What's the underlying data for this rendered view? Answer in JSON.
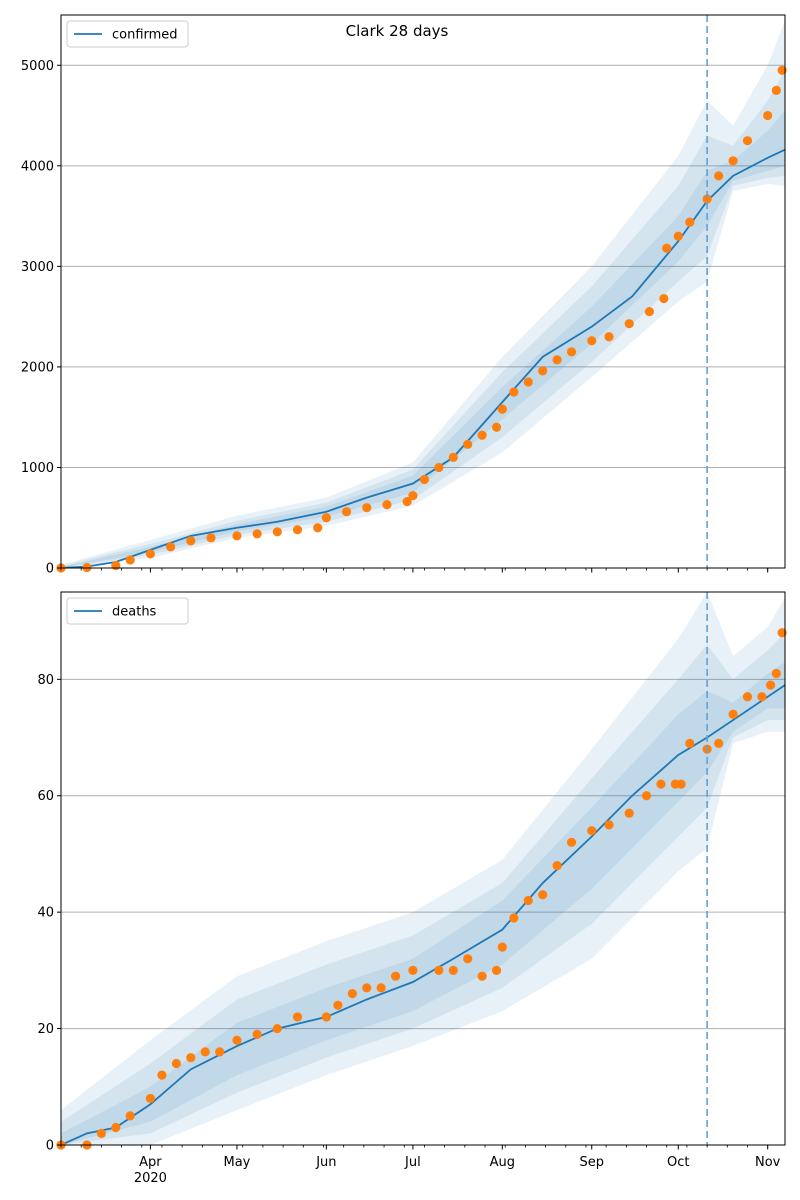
{
  "figure_title": "Clark 28 days",
  "colors": {
    "model_line": "#1f77b4",
    "observed_points": "#ff7f0e",
    "band": "#1f77b4",
    "grid": "#b0b0b0",
    "cutoff_line": "#5fa2d6"
  },
  "chart_data": [
    {
      "name": "confirmed",
      "type": "line",
      "title": "Clark 28 days",
      "legend": {
        "entries": [
          "confirmed"
        ],
        "placement": "top-left"
      },
      "x_type": "date",
      "xlim": [
        "2020-03-01",
        "2020-11-07"
      ],
      "ylim": [
        0,
        5500
      ],
      "yticks": [
        0,
        1000,
        2000,
        3000,
        4000,
        5000
      ],
      "ytick_labels": [
        "0",
        "1000",
        "2000",
        "3000",
        "4000",
        "5000"
      ],
      "grid": "horizontal",
      "cutoff_date": "2020-10-11",
      "model": {
        "name": "confirmed",
        "x": [
          "2020-03-01",
          "2020-03-10",
          "2020-03-20",
          "2020-04-01",
          "2020-04-15",
          "2020-05-01",
          "2020-05-15",
          "2020-06-01",
          "2020-06-15",
          "2020-07-01",
          "2020-07-15",
          "2020-08-01",
          "2020-08-15",
          "2020-09-01",
          "2020-09-15",
          "2020-10-01",
          "2020-10-11",
          "2020-10-20",
          "2020-11-01",
          "2020-11-07"
        ],
        "y": [
          0,
          15,
          60,
          180,
          320,
          400,
          460,
          560,
          700,
          840,
          1100,
          1650,
          2100,
          2400,
          2700,
          3250,
          3650,
          3900,
          4080,
          4160
        ]
      },
      "bands": [
        {
          "x": [
            "2020-03-01",
            "2020-04-01",
            "2020-05-01",
            "2020-06-01",
            "2020-07-01",
            "2020-08-01",
            "2020-09-01",
            "2020-10-01",
            "2020-10-11",
            "2020-10-20",
            "2020-11-01",
            "2020-11-07"
          ],
          "lower": [
            0,
            100,
            300,
            420,
            620,
            1150,
            1900,
            2650,
            2850,
            3750,
            3820,
            3800
          ],
          "upper": [
            30,
            280,
            520,
            700,
            1050,
            2100,
            3000,
            4100,
            4650,
            4400,
            5000,
            5450
          ]
        },
        {
          "x": [
            "2020-03-01",
            "2020-04-01",
            "2020-05-01",
            "2020-06-01",
            "2020-07-01",
            "2020-08-01",
            "2020-09-01",
            "2020-10-01",
            "2020-10-11",
            "2020-10-20",
            "2020-11-01",
            "2020-11-07"
          ],
          "lower": [
            0,
            130,
            330,
            460,
            680,
            1300,
            2050,
            2850,
            3100,
            3800,
            3880,
            3900
          ],
          "upper": [
            20,
            240,
            470,
            650,
            980,
            1950,
            2800,
            3800,
            4300,
            4200,
            4650,
            4950
          ]
        },
        {
          "x": [
            "2020-03-01",
            "2020-04-01",
            "2020-05-01",
            "2020-06-01",
            "2020-07-01",
            "2020-08-01",
            "2020-09-01",
            "2020-10-01",
            "2020-10-11",
            "2020-10-20",
            "2020-11-01",
            "2020-11-07"
          ],
          "lower": [
            0,
            155,
            365,
            510,
            750,
            1480,
            2230,
            3050,
            3400,
            3850,
            3950,
            4000
          ],
          "upper": [
            10,
            210,
            435,
            610,
            920,
            1800,
            2600,
            3500,
            3950,
            4050,
            4350,
            4550
          ]
        }
      ],
      "observed": {
        "name": "observed",
        "x": [
          "2020-03-01",
          "2020-03-10",
          "2020-03-20",
          "2020-03-25",
          "2020-04-01",
          "2020-04-08",
          "2020-04-15",
          "2020-04-22",
          "2020-05-01",
          "2020-05-08",
          "2020-05-15",
          "2020-05-22",
          "2020-05-29",
          "2020-06-01",
          "2020-06-08",
          "2020-06-15",
          "2020-06-22",
          "2020-06-29",
          "2020-07-01",
          "2020-07-05",
          "2020-07-10",
          "2020-07-15",
          "2020-07-20",
          "2020-07-25",
          "2020-07-30",
          "2020-08-01",
          "2020-08-05",
          "2020-08-10",
          "2020-08-15",
          "2020-08-20",
          "2020-08-25",
          "2020-09-01",
          "2020-09-07",
          "2020-09-14",
          "2020-09-21",
          "2020-09-26",
          "2020-09-27",
          "2020-10-01",
          "2020-10-05",
          "2020-10-11",
          "2020-10-15",
          "2020-10-20",
          "2020-10-25",
          "2020-11-01",
          "2020-11-04",
          "2020-11-06"
        ],
        "y": [
          0,
          5,
          25,
          80,
          140,
          210,
          270,
          300,
          320,
          340,
          360,
          380,
          400,
          500,
          560,
          600,
          630,
          660,
          720,
          880,
          1000,
          1100,
          1230,
          1320,
          1400,
          1580,
          1750,
          1850,
          1960,
          2070,
          2150,
          2260,
          2300,
          2430,
          2550,
          2680,
          3180,
          3300,
          3440,
          3670,
          3900,
          4050,
          4250,
          4500,
          4750,
          4950
        ]
      },
      "xticks": [
        {
          "date": "2020-04-01",
          "label": "Apr"
        },
        {
          "date": "2020-05-01",
          "label": "May"
        },
        {
          "date": "2020-06-01",
          "label": "Jun"
        },
        {
          "date": "2020-07-01",
          "label": "Jul"
        },
        {
          "date": "2020-08-01",
          "label": "Aug"
        },
        {
          "date": "2020-09-01",
          "label": "Sep"
        },
        {
          "date": "2020-10-01",
          "label": "Oct"
        },
        {
          "date": "2020-11-01",
          "label": "Nov"
        }
      ],
      "xtick_sublabel": ""
    },
    {
      "name": "deaths",
      "type": "line",
      "title": "",
      "legend": {
        "entries": [
          "deaths"
        ],
        "placement": "top-left"
      },
      "x_type": "date",
      "xlim": [
        "2020-03-01",
        "2020-11-07"
      ],
      "ylim": [
        0,
        95
      ],
      "yticks": [
        0,
        20,
        40,
        60,
        80
      ],
      "ytick_labels": [
        "0",
        "20",
        "40",
        "60",
        "80"
      ],
      "grid": "horizontal",
      "cutoff_date": "2020-10-11",
      "model": {
        "name": "deaths",
        "x": [
          "2020-03-01",
          "2020-03-10",
          "2020-03-20",
          "2020-04-01",
          "2020-04-15",
          "2020-05-01",
          "2020-05-15",
          "2020-06-01",
          "2020-06-15",
          "2020-07-01",
          "2020-07-15",
          "2020-08-01",
          "2020-08-15",
          "2020-09-01",
          "2020-09-15",
          "2020-10-01",
          "2020-10-11",
          "2020-10-20",
          "2020-11-01",
          "2020-11-07"
        ],
        "y": [
          0,
          2,
          3,
          7,
          13,
          17,
          20,
          22,
          25,
          28,
          32,
          37,
          45,
          53,
          60,
          67,
          70,
          73,
          77,
          79
        ]
      },
      "bands": [
        {
          "x": [
            "2020-03-01",
            "2020-04-01",
            "2020-05-01",
            "2020-06-01",
            "2020-07-01",
            "2020-08-01",
            "2020-09-01",
            "2020-10-01",
            "2020-10-11",
            "2020-10-20",
            "2020-11-01",
            "2020-11-07"
          ],
          "lower": [
            0,
            0,
            6,
            12,
            17,
            23,
            32,
            47,
            51,
            69,
            71,
            71
          ],
          "upper": [
            6,
            18,
            29,
            35,
            40,
            49,
            68,
            87,
            95,
            84,
            89,
            94
          ]
        },
        {
          "x": [
            "2020-03-01",
            "2020-04-01",
            "2020-05-01",
            "2020-06-01",
            "2020-07-01",
            "2020-08-01",
            "2020-09-01",
            "2020-10-01",
            "2020-10-11",
            "2020-10-20",
            "2020-11-01",
            "2020-11-07"
          ],
          "lower": [
            0,
            2,
            9,
            15,
            20,
            27,
            38,
            53,
            58,
            70,
            73,
            73
          ],
          "upper": [
            4,
            14,
            25,
            31,
            36,
            45,
            63,
            80,
            86,
            80,
            85,
            88
          ]
        },
        {
          "x": [
            "2020-03-01",
            "2020-04-01",
            "2020-05-01",
            "2020-06-01",
            "2020-07-01",
            "2020-08-01",
            "2020-09-01",
            "2020-10-01",
            "2020-10-11",
            "2020-10-20",
            "2020-11-01",
            "2020-11-07"
          ],
          "lower": [
            0,
            4,
            12,
            18,
            23,
            31,
            44,
            59,
            64,
            71,
            75,
            75
          ],
          "upper": [
            2,
            10,
            21,
            27,
            32,
            42,
            58,
            74,
            78,
            76,
            81,
            83
          ]
        }
      ],
      "observed": {
        "name": "observed",
        "x": [
          "2020-03-01",
          "2020-03-10",
          "2020-03-15",
          "2020-03-20",
          "2020-03-25",
          "2020-04-01",
          "2020-04-05",
          "2020-04-10",
          "2020-04-15",
          "2020-04-20",
          "2020-04-25",
          "2020-05-01",
          "2020-05-08",
          "2020-05-15",
          "2020-05-22",
          "2020-06-01",
          "2020-06-05",
          "2020-06-10",
          "2020-06-15",
          "2020-06-20",
          "2020-06-25",
          "2020-07-01",
          "2020-07-10",
          "2020-07-15",
          "2020-07-20",
          "2020-07-25",
          "2020-07-30",
          "2020-08-01",
          "2020-08-05",
          "2020-08-10",
          "2020-08-15",
          "2020-08-20",
          "2020-08-25",
          "2020-09-01",
          "2020-09-07",
          "2020-09-14",
          "2020-09-20",
          "2020-09-25",
          "2020-09-30",
          "2020-10-02",
          "2020-10-05",
          "2020-10-11",
          "2020-10-15",
          "2020-10-20",
          "2020-10-25",
          "2020-10-30",
          "2020-11-02",
          "2020-11-04",
          "2020-11-06"
        ],
        "y": [
          0,
          0,
          2,
          3,
          5,
          8,
          12,
          14,
          15,
          16,
          16,
          18,
          19,
          20,
          22,
          22,
          24,
          26,
          27,
          27,
          29,
          30,
          30,
          30,
          32,
          29,
          30,
          34,
          39,
          42,
          43,
          48,
          52,
          54,
          55,
          57,
          60,
          62,
          62,
          62,
          69,
          68,
          69,
          74,
          77,
          77,
          79,
          81,
          88
        ]
      },
      "xticks": [
        {
          "date": "2020-04-01",
          "label": "Apr"
        },
        {
          "date": "2020-05-01",
          "label": "May"
        },
        {
          "date": "2020-06-01",
          "label": "Jun"
        },
        {
          "date": "2020-07-01",
          "label": "Jul"
        },
        {
          "date": "2020-08-01",
          "label": "Aug"
        },
        {
          "date": "2020-09-01",
          "label": "Sep"
        },
        {
          "date": "2020-10-01",
          "label": "Oct"
        },
        {
          "date": "2020-11-01",
          "label": "Nov"
        }
      ],
      "xtick_sublabel": "2020"
    }
  ]
}
